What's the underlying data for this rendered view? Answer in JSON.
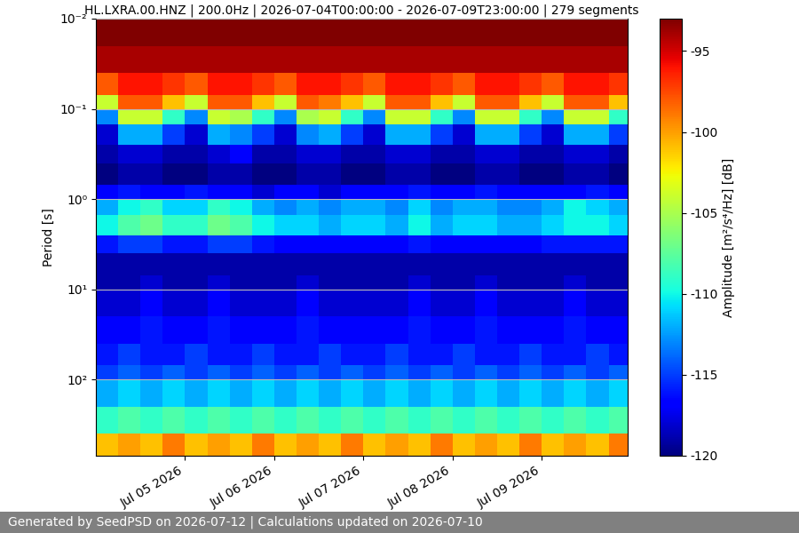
{
  "chart_data": {
    "type": "heatmap",
    "title": "HL.LXRA.00.HNZ | 200.0Hz | 2026-07-04T00:00:00 - 2026-07-09T23:00:00 | 279 segments",
    "y_label": "Period [s]",
    "log": "y",
    "grid": true,
    "footer": "Generated by SeedPSD on 2026-07-12 | Calculations updated on 2026-07-10",
    "x_edges": [
      "2026-07-04T00:00",
      "2026-07-04T06:00",
      "2026-07-04T12:00",
      "2026-07-04T18:00",
      "2026-07-05T00:00",
      "2026-07-05T06:00",
      "2026-07-05T12:00",
      "2026-07-05T18:00",
      "2026-07-06T00:00",
      "2026-07-06T06:00",
      "2026-07-06T12:00",
      "2026-07-06T18:00",
      "2026-07-07T00:00",
      "2026-07-07T06:00",
      "2026-07-07T12:00",
      "2026-07-07T18:00",
      "2026-07-08T00:00",
      "2026-07-08T06:00",
      "2026-07-08T12:00",
      "2026-07-08T18:00",
      "2026-07-09T00:00",
      "2026-07-09T06:00",
      "2026-07-09T12:00",
      "2026-07-09T18:00",
      "2026-07-09T23:00"
    ],
    "y_edges": [
      0.01,
      0.02,
      0.04,
      0.07,
      0.1,
      0.15,
      0.25,
      0.4,
      0.7,
      1,
      1.5,
      2.5,
      4,
      7,
      10,
      20,
      40,
      70,
      100,
      200,
      400,
      700
    ],
    "xlim": [
      "2026-07-04T00:00",
      "2026-07-09T23:00"
    ],
    "xticks": [
      {
        "value": "2026-07-05",
        "label": "Jul 05 2026"
      },
      {
        "value": "2026-07-06",
        "label": "Jul 06 2026"
      },
      {
        "value": "2026-07-07",
        "label": "Jul 07 2026"
      },
      {
        "value": "2026-07-08",
        "label": "Jul 08 2026"
      },
      {
        "value": "2026-07-09",
        "label": "Jul 09 2026"
      }
    ],
    "ylim": [
      700,
      0.01
    ],
    "yticks": [
      {
        "value": 0.01,
        "label": "10⁻²"
      },
      {
        "value": 0.1,
        "label": "10⁻¹"
      },
      {
        "value": 1,
        "label": "10⁰"
      },
      {
        "value": 10,
        "label": "10¹"
      },
      {
        "value": 100,
        "label": "10²"
      }
    ],
    "colorbar": {
      "label": "Amplitude [m²/s⁴/Hz] [dB]",
      "range": [
        -120,
        -93
      ],
      "ticks": [
        -95,
        -100,
        -105,
        -110,
        -115,
        -120
      ]
    },
    "cells": [
      [
        -93,
        -93,
        -93,
        -93,
        -93,
        -93,
        -93,
        -93,
        -93,
        -93,
        -93,
        -93,
        -93,
        -93,
        -93,
        -93,
        -93,
        -93,
        -93,
        -93,
        -93,
        -93,
        -93,
        -93
      ],
      [
        -94,
        -94,
        -94,
        -94,
        -94,
        -94,
        -94,
        -94,
        -94,
        -94,
        -94,
        -94,
        -94,
        -94,
        -94,
        -94,
        -94,
        -94,
        -94,
        -94,
        -94,
        -94,
        -94,
        -94
      ],
      [
        -98,
        -96,
        -96,
        -97,
        -98,
        -96,
        -96,
        -97,
        -98,
        -96,
        -96,
        -97,
        -98,
        -96,
        -96,
        -97,
        -98,
        -96,
        -96,
        -97,
        -98,
        -96,
        -96,
        -97
      ],
      [
        -104,
        -98,
        -98,
        -101,
        -104,
        -98,
        -98,
        -101,
        -104,
        -98,
        -99,
        -101,
        -104,
        -98,
        -98,
        -101,
        -104,
        -98,
        -98,
        -101,
        -104,
        -98,
        -98,
        -101
      ],
      [
        -113,
        -104,
        -104,
        -109,
        -113,
        -104,
        -105,
        -109,
        -113,
        -105,
        -104,
        -109,
        -113,
        -104,
        -104,
        -109,
        -113,
        -104,
        -104,
        -109,
        -113,
        -104,
        -104,
        -109
      ],
      [
        -118,
        -112,
        -112,
        -115,
        -118,
        -112,
        -113,
        -115,
        -118,
        -113,
        -112,
        -115,
        -118,
        -112,
        -112,
        -115,
        -118,
        -112,
        -112,
        -115,
        -118,
        -112,
        -112,
        -115
      ],
      [
        -119,
        -118,
        -118,
        -119,
        -119,
        -118,
        -117,
        -119,
        -119,
        -118,
        -118,
        -119,
        -119,
        -118,
        -118,
        -119,
        -119,
        -118,
        -118,
        -119,
        -119,
        -118,
        -118,
        -119
      ],
      [
        -120,
        -119,
        -119,
        -120,
        -120,
        -119,
        -119,
        -120,
        -120,
        -119,
        -119,
        -120,
        -120,
        -119,
        -119,
        -120,
        -120,
        -119,
        -119,
        -120,
        -120,
        -119,
        -119,
        -120
      ],
      [
        -117,
        -116,
        -117,
        -117,
        -116,
        -117,
        -117,
        -118,
        -117,
        -117,
        -118,
        -117,
        -117,
        -117,
        -116,
        -117,
        -117,
        -116,
        -117,
        -117,
        -117,
        -117,
        -116,
        -117
      ],
      [
        -112,
        -110,
        -109,
        -111,
        -111,
        -109,
        -110,
        -112,
        -113,
        -112,
        -113,
        -112,
        -112,
        -113,
        -111,
        -113,
        -112,
        -112,
        -113,
        -113,
        -112,
        -110,
        -111,
        -112
      ],
      [
        -110,
        -108,
        -107,
        -109,
        -109,
        -107,
        -108,
        -110,
        -111,
        -111,
        -112,
        -111,
        -111,
        -112,
        -110,
        -112,
        -111,
        -111,
        -112,
        -112,
        -111,
        -110,
        -110,
        -111
      ],
      [
        -116,
        -115,
        -115,
        -116,
        -116,
        -115,
        -115,
        -116,
        -117,
        -117,
        -117,
        -117,
        -117,
        -117,
        -116,
        -117,
        -117,
        -117,
        -117,
        -117,
        -116,
        -116,
        -116,
        -116
      ],
      [
        -119,
        -119,
        -119,
        -119,
        -119,
        -119,
        -119,
        -119,
        -119,
        -119,
        -119,
        -119,
        -119,
        -119,
        -119,
        -119,
        -119,
        -119,
        -119,
        -119,
        -119,
        -119,
        -119,
        -119
      ],
      [
        -119,
        -119,
        -118,
        -119,
        -119,
        -118,
        -119,
        -119,
        -119,
        -118,
        -119,
        -119,
        -119,
        -119,
        -118,
        -119,
        -119,
        -118,
        -119,
        -119,
        -119,
        -118,
        -119,
        -119
      ],
      [
        -118,
        -118,
        -117,
        -118,
        -118,
        -117,
        -118,
        -118,
        -118,
        -117,
        -118,
        -118,
        -118,
        -118,
        -117,
        -118,
        -118,
        -117,
        -118,
        -118,
        -118,
        -117,
        -118,
        -118
      ],
      [
        -117,
        -117,
        -116,
        -117,
        -117,
        -116,
        -117,
        -117,
        -117,
        -116,
        -117,
        -117,
        -117,
        -117,
        -116,
        -117,
        -117,
        -116,
        -117,
        -117,
        -117,
        -116,
        -117,
        -117
      ],
      [
        -116,
        -115,
        -116,
        -116,
        -115,
        -116,
        -116,
        -115,
        -116,
        -116,
        -115,
        -116,
        -116,
        -115,
        -116,
        -116,
        -115,
        -116,
        -116,
        -115,
        -116,
        -116,
        -115,
        -116
      ],
      [
        -115,
        -114,
        -115,
        -114,
        -115,
        -114,
        -115,
        -114,
        -115,
        -114,
        -115,
        -114,
        -115,
        -114,
        -115,
        -114,
        -115,
        -114,
        -115,
        -114,
        -115,
        -114,
        -115,
        -114
      ],
      [
        -112,
        -111,
        -112,
        -111,
        -112,
        -111,
        -112,
        -111,
        -112,
        -111,
        -112,
        -111,
        -112,
        -111,
        -112,
        -111,
        -112,
        -111,
        -112,
        -111,
        -112,
        -111,
        -112,
        -111
      ],
      [
        -109,
        -108,
        -109,
        -108,
        -109,
        -108,
        -109,
        -108,
        -109,
        -108,
        -109,
        -108,
        -109,
        -108,
        -109,
        -108,
        -109,
        -108,
        -109,
        -108,
        -109,
        -108,
        -109,
        -108
      ],
      [
        -101,
        -100,
        -101,
        -99,
        -101,
        -100,
        -101,
        -99,
        -101,
        -100,
        -101,
        -99,
        -101,
        -100,
        -101,
        -99,
        -101,
        -100,
        -101,
        -99,
        -101,
        -100,
        -101,
        -99
      ]
    ]
  }
}
